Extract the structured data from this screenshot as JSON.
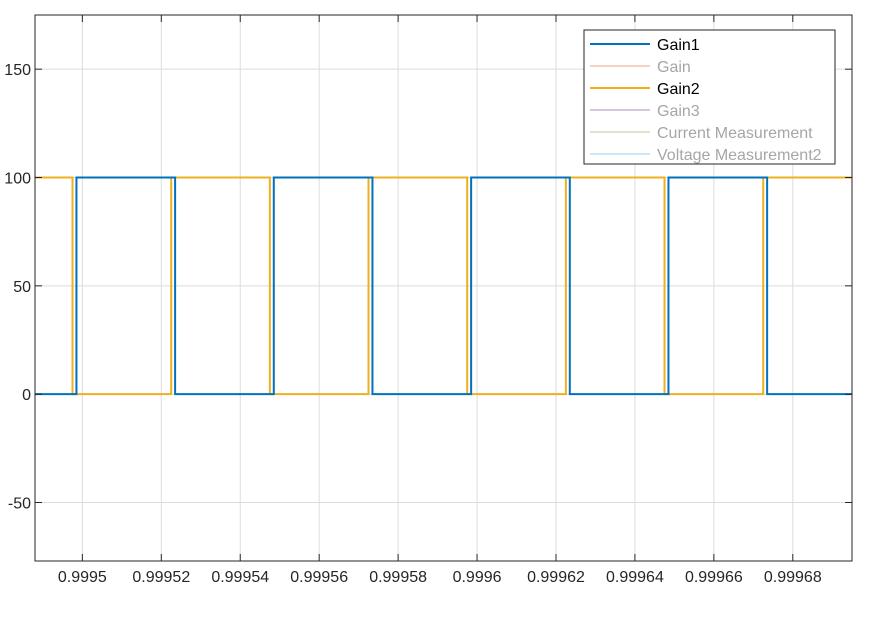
{
  "chart_data": {
    "type": "line",
    "title": "",
    "xlabel": "",
    "ylabel": "",
    "xlim": [
      0.999488,
      0.999695
    ],
    "ylim": [
      -77,
      175
    ],
    "xticks": [
      0.9995,
      0.99952,
      0.99954,
      0.99956,
      0.99958,
      0.9996,
      0.99962,
      0.99964,
      0.99966,
      0.99968
    ],
    "xtick_labels": [
      "0.9995",
      "0.99952",
      "0.99954",
      "0.99956",
      "0.99958",
      "0.9996",
      "0.99962",
      "0.99964",
      "0.99966",
      "0.99968"
    ],
    "yticks": [
      -50,
      0,
      50,
      100,
      150
    ],
    "ytick_labels": [
      "-50",
      "0",
      "50",
      "100",
      "150"
    ],
    "grid": true,
    "legend_position": "top-right",
    "series": [
      {
        "name": "Gain1",
        "color": "#0072BD",
        "visible": true,
        "x": [
          0.999488,
          0.9994985,
          0.9994985,
          0.9995235,
          0.9995235,
          0.9995485,
          0.9995485,
          0.9995735,
          0.9995735,
          0.9995985,
          0.9995985,
          0.9996235,
          0.9996235,
          0.9996485,
          0.9996485,
          0.9996735,
          0.9996735,
          0.999695
        ],
        "values": [
          0,
          0,
          100,
          100,
          0,
          0,
          100,
          100,
          0,
          0,
          100,
          100,
          0,
          0,
          100,
          100,
          0,
          0
        ]
      },
      {
        "name": "Gain",
        "color": "#F3C4A8",
        "visible": false,
        "x": [],
        "values": []
      },
      {
        "name": "Gain2",
        "color": "#EDB120",
        "visible": true,
        "x": [
          0.999488,
          0.9994975,
          0.9994975,
          0.9995225,
          0.9995225,
          0.9995475,
          0.9995475,
          0.9995725,
          0.9995725,
          0.9995975,
          0.9995975,
          0.9996225,
          0.9996225,
          0.9996475,
          0.9996475,
          0.9996725,
          0.9996725,
          0.999695
        ],
        "values": [
          100,
          100,
          0,
          0,
          100,
          100,
          0,
          0,
          100,
          100,
          0,
          0,
          100,
          100,
          0,
          0,
          100,
          100
        ]
      },
      {
        "name": "Gain3",
        "color": "#C9B4D0",
        "visible": false,
        "x": [],
        "values": []
      },
      {
        "name": "Current Measurement",
        "color": "#D6DCB6",
        "visible": false,
        "x": [],
        "values": []
      },
      {
        "name": "Voltage Measurement2",
        "color": "#B9E0F5",
        "visible": false,
        "x": [],
        "values": []
      }
    ]
  },
  "legend_colors": {
    "active_text": "#000000",
    "inactive_text": "#A6A6A6"
  }
}
